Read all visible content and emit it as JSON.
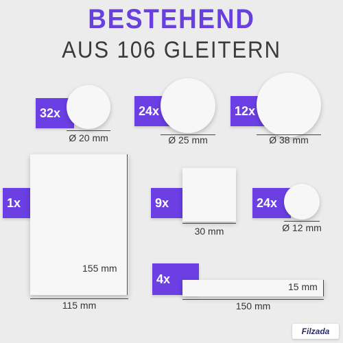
{
  "header": {
    "title": "BESTEHEND",
    "subtitle": "AUS 106 GLEITERN"
  },
  "items": [
    {
      "count": "32x",
      "dimension": "Ø 20 mm",
      "shape": "circle"
    },
    {
      "count": "24x",
      "dimension": "Ø 25 mm",
      "shape": "circle"
    },
    {
      "count": "12x",
      "dimension": "Ø 38 mm",
      "shape": "circle"
    },
    {
      "count": "1x",
      "width": "115 mm",
      "height": "155 mm",
      "shape": "rectangle"
    },
    {
      "count": "9x",
      "dimension": "30 mm",
      "shape": "square"
    },
    {
      "count": "24x",
      "dimension": "Ø 12 mm",
      "shape": "circle"
    },
    {
      "count": "4x",
      "width": "150 mm",
      "height": "15 mm",
      "shape": "strip"
    }
  ],
  "brand": {
    "logo_text": "Filzada",
    "accent_color": "#6b3fe4"
  }
}
